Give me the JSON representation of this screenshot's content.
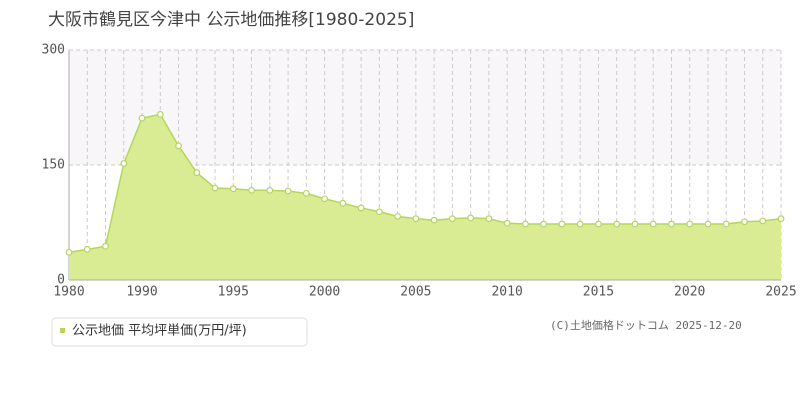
{
  "chart_data": {
    "type": "area",
    "title": "大阪市鶴見区今津中  公示地価推移[1980-2025]",
    "categories": [
      "1980",
      null,
      null,
      null,
      "1990",
      null,
      null,
      null,
      null,
      "1995",
      null,
      null,
      null,
      null,
      "2000",
      null,
      null,
      null,
      null,
      "2005",
      null,
      null,
      null,
      null,
      "2010",
      null,
      null,
      null,
      null,
      "2015",
      null,
      null,
      null,
      null,
      "2020",
      null,
      null,
      null,
      null,
      "2025"
    ],
    "series": [
      {
        "name": "公示地価 平均坪単価(万円/坪)",
        "color": "#b5d65a",
        "values": [
          36,
          40,
          44,
          152,
          211,
          216,
          175,
          140,
          120,
          119,
          117,
          117,
          116,
          113,
          106,
          100,
          94,
          89,
          83,
          80,
          78,
          80,
          81,
          80,
          74,
          73,
          73,
          73,
          73,
          73,
          73,
          73,
          73,
          73,
          73,
          73,
          73,
          76,
          77,
          80
        ]
      }
    ],
    "ylim": [
      0,
      300
    ],
    "yticks": [
      0,
      150,
      300
    ],
    "grid": true,
    "copyright": "(C)土地価格ドットコム 2025-12-20"
  }
}
